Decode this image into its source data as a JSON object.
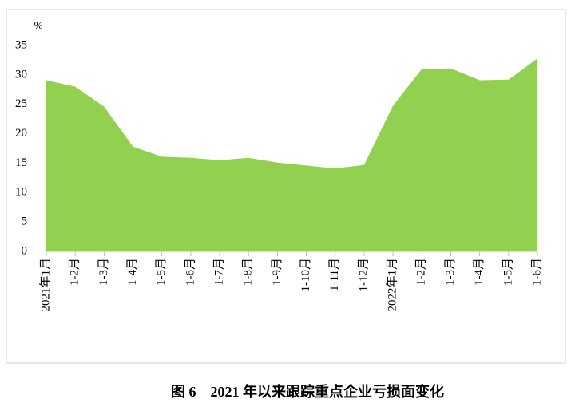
{
  "chart_data": {
    "type": "area",
    "title": "图 6　2021 年以来跟踪重点企业亏损面变化",
    "y_label": "%",
    "categories": [
      "2021年1月",
      "1-2月",
      "1-3月",
      "1-4月",
      "1-5月",
      "1-6月",
      "1-7月",
      "1-8月",
      "1-9月",
      "1-10月",
      "1-11月",
      "1-12月",
      "2022年1月",
      "1-2月",
      "1-3月",
      "1-4月",
      "1-5月",
      "1-6月"
    ],
    "values": [
      29.1,
      28.0,
      24.6,
      17.8,
      16.1,
      15.9,
      15.5,
      15.9,
      15.1,
      14.6,
      14.1,
      14.7,
      24.8,
      31.0,
      31.1,
      29.1,
      29.2,
      32.8
    ],
    "color": "#92d050",
    "ylim": [
      0,
      35
    ],
    "yticks": [
      0,
      5,
      10,
      15,
      20,
      25,
      30,
      35
    ]
  }
}
